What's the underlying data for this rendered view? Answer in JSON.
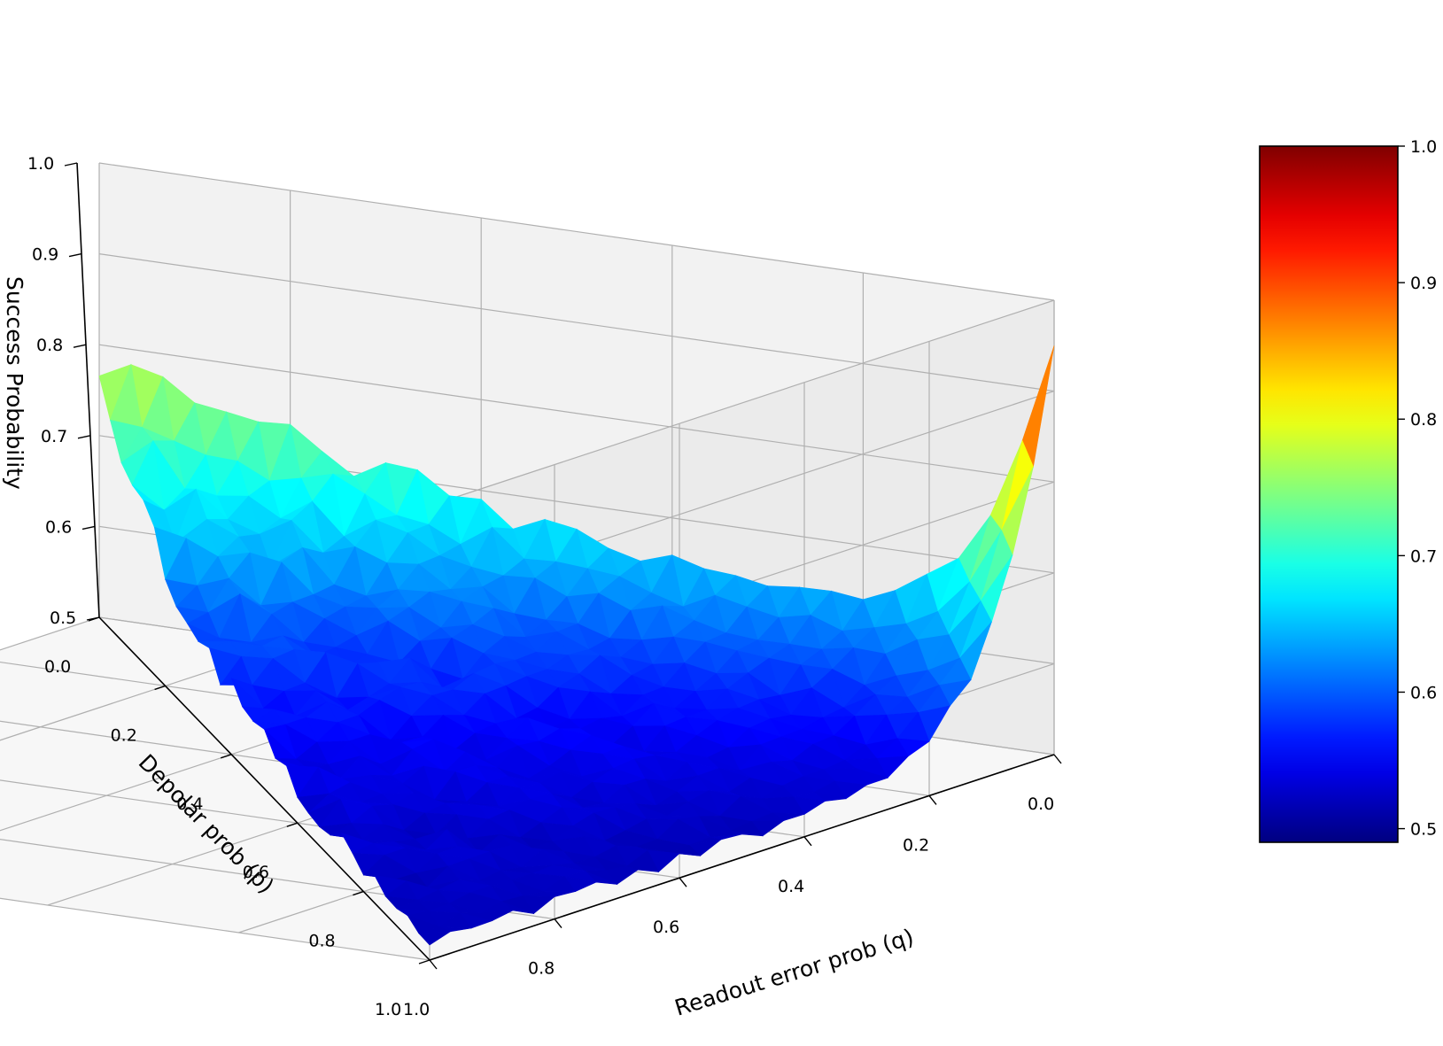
{
  "chart_data": {
    "type": "surface3d",
    "title": "",
    "xlabel": "Readout error prob (q)",
    "ylabel": "Depolar prob (p)",
    "zlabel": "Success Probability",
    "x_ticks": [
      "0.0",
      "0.2",
      "0.4",
      "0.6",
      "0.8",
      "1.0"
    ],
    "y_ticks": [
      "0.0",
      "0.2",
      "0.4",
      "0.6",
      "0.8",
      "1.0"
    ],
    "z_ticks": [
      "0.5",
      "0.6",
      "0.7",
      "0.8",
      "0.9",
      "1.0"
    ],
    "xlim": [
      0,
      1
    ],
    "ylim": [
      0,
      1
    ],
    "zlim": [
      0.5,
      1.0
    ],
    "grid": true,
    "colormap": "jet",
    "colorbar": {
      "range": [
        0.49,
        1.0
      ],
      "ticks": [
        "0.5",
        "0.6",
        "0.7",
        "0.8",
        "0.9",
        "1.0"
      ]
    },
    "domain": "p + q <= 1",
    "corner_values": [
      {
        "q": 0.0,
        "p": 0.0,
        "z": 0.95
      },
      {
        "q": 1.0,
        "p": 0.0,
        "z": 0.5
      },
      {
        "q": 0.0,
        "p": 1.0,
        "z": 0.5
      }
    ]
  }
}
